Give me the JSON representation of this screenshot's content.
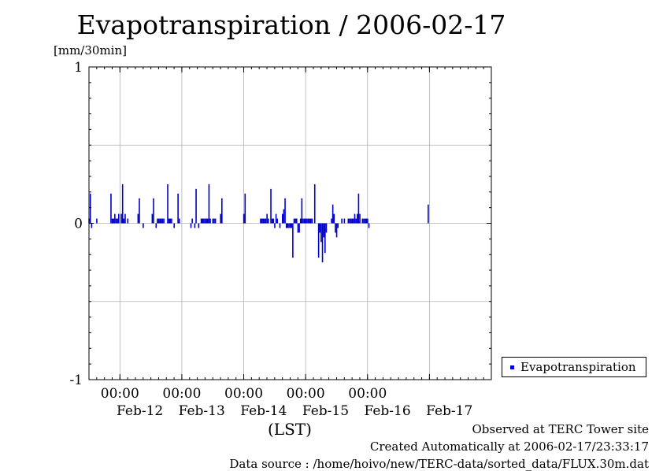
{
  "chart_data": {
    "type": "bar",
    "title": "Evapotranspiration / 2006-02-17",
    "ylabel": "[mm/30min]",
    "xlabel": "(LST)",
    "ylim": [
      -1,
      1
    ],
    "yticks": [
      "1",
      "0",
      "-1"
    ],
    "yticks_values": [
      1,
      0,
      -1
    ],
    "xlim": [
      "2006-02-11 12:00",
      "2006-02-18 00:00"
    ],
    "x_time_ticks": [
      "00:00",
      "00:00",
      "00:00",
      "00:00",
      "00:00"
    ],
    "x_day_labels": [
      "Feb-12",
      "Feb-13",
      "Feb-14",
      "Feb-15",
      "Feb-16",
      "Feb-17"
    ],
    "grid": true,
    "legend_position": "right",
    "series": [
      {
        "name": "Evapotranspiration",
        "color": "#0000cc",
        "points": [
          [
            "2006-02-11 12:00",
            0.03
          ],
          [
            "2006-02-11 12:30",
            0.19
          ],
          [
            "2006-02-11 13:00",
            -0.03
          ],
          [
            "2006-02-11 15:00",
            0.03
          ],
          [
            "2006-02-11 20:30",
            0.19
          ],
          [
            "2006-02-11 21:00",
            0.03
          ],
          [
            "2006-02-11 21:30",
            0.03
          ],
          [
            "2006-02-11 22:00",
            0.06
          ],
          [
            "2006-02-11 22:30",
            0.03
          ],
          [
            "2006-02-11 23:00",
            0.03
          ],
          [
            "2006-02-11 23:30",
            0.06
          ],
          [
            "2006-02-12 00:30",
            0.06
          ],
          [
            "2006-02-12 01:00",
            0.25
          ],
          [
            "2006-02-12 01:30",
            0.03
          ],
          [
            "2006-02-12 02:00",
            0.06
          ],
          [
            "2006-02-12 03:00",
            0.03
          ],
          [
            "2006-02-12 07:00",
            0.06
          ],
          [
            "2006-02-12 07:30",
            0.16
          ],
          [
            "2006-02-12 09:00",
            -0.03
          ],
          [
            "2006-02-12 12:30",
            0.06
          ],
          [
            "2006-02-12 13:00",
            0.16
          ],
          [
            "2006-02-12 14:00",
            -0.03
          ],
          [
            "2006-02-12 14:30",
            0.03
          ],
          [
            "2006-02-12 15:00",
            0.03
          ],
          [
            "2006-02-12 15:30",
            0.03
          ],
          [
            "2006-02-12 16:00",
            0.03
          ],
          [
            "2006-02-12 16:30",
            0.03
          ],
          [
            "2006-02-12 17:00",
            0.03
          ],
          [
            "2006-02-12 18:30",
            0.25
          ],
          [
            "2006-02-12 19:00",
            0.03
          ],
          [
            "2006-02-12 19:30",
            0.03
          ],
          [
            "2006-02-12 20:00",
            0.03
          ],
          [
            "2006-02-12 21:00",
            -0.03
          ],
          [
            "2006-02-12 22:30",
            0.19
          ],
          [
            "2006-02-12 23:00",
            0.03
          ],
          [
            "2006-02-13 03:30",
            -0.03
          ],
          [
            "2006-02-13 04:00",
            0.03
          ],
          [
            "2006-02-13 05:00",
            -0.03
          ],
          [
            "2006-02-13 05:30",
            0.22
          ],
          [
            "2006-02-13 06:30",
            -0.03
          ],
          [
            "2006-02-13 07:30",
            0.03
          ],
          [
            "2006-02-13 08:00",
            0.03
          ],
          [
            "2006-02-13 08:30",
            0.03
          ],
          [
            "2006-02-13 09:00",
            0.03
          ],
          [
            "2006-02-13 09:30",
            0.03
          ],
          [
            "2006-02-13 10:00",
            0.03
          ],
          [
            "2006-02-13 10:30",
            0.25
          ],
          [
            "2006-02-13 11:00",
            0.03
          ],
          [
            "2006-02-13 12:00",
            0.03
          ],
          [
            "2006-02-13 12:30",
            0.03
          ],
          [
            "2006-02-13 13:00",
            0.03
          ],
          [
            "2006-02-13 15:00",
            0.06
          ],
          [
            "2006-02-13 15:30",
            0.16
          ],
          [
            "2006-02-14 00:00",
            0.06
          ],
          [
            "2006-02-14 00:30",
            0.19
          ],
          [
            "2006-02-14 06:30",
            0.03
          ],
          [
            "2006-02-14 07:00",
            0.03
          ],
          [
            "2006-02-14 07:30",
            0.03
          ],
          [
            "2006-02-14 08:00",
            0.03
          ],
          [
            "2006-02-14 08:30",
            0.03
          ],
          [
            "2006-02-14 09:00",
            0.06
          ],
          [
            "2006-02-14 09:30",
            0.03
          ],
          [
            "2006-02-14 10:30",
            0.22
          ],
          [
            "2006-02-14 11:00",
            0.03
          ],
          [
            "2006-02-14 11:30",
            0.03
          ],
          [
            "2006-02-14 12:00",
            -0.03
          ],
          [
            "2006-02-14 12:30",
            0.06
          ],
          [
            "2006-02-14 13:00",
            0.03
          ],
          [
            "2006-02-14 14:00",
            -0.03
          ],
          [
            "2006-02-14 15:00",
            0.06
          ],
          [
            "2006-02-14 15:30",
            0.09
          ],
          [
            "2006-02-14 16:00",
            0.16
          ],
          [
            "2006-02-14 16:30",
            -0.03
          ],
          [
            "2006-02-14 17:00",
            -0.03
          ],
          [
            "2006-02-14 17:30",
            -0.03
          ],
          [
            "2006-02-14 18:00",
            -0.03
          ],
          [
            "2006-02-14 18:30",
            -0.03
          ],
          [
            "2006-02-14 19:00",
            -0.22
          ],
          [
            "2006-02-14 19:30",
            0.03
          ],
          [
            "2006-02-14 20:00",
            0.03
          ],
          [
            "2006-02-14 20:30",
            0.03
          ],
          [
            "2006-02-14 21:00",
            -0.06
          ],
          [
            "2006-02-14 21:30",
            -0.06
          ],
          [
            "2006-02-14 22:00",
            0.03
          ],
          [
            "2006-02-14 22:30",
            0.16
          ],
          [
            "2006-02-14 23:00",
            0.03
          ],
          [
            "2006-02-14 23:30",
            0.03
          ],
          [
            "2006-02-15 00:00",
            0.03
          ],
          [
            "2006-02-15 00:30",
            0.03
          ],
          [
            "2006-02-15 01:00",
            0.03
          ],
          [
            "2006-02-15 01:30",
            0.03
          ],
          [
            "2006-02-15 02:00",
            0.03
          ],
          [
            "2006-02-15 02:30",
            0.03
          ],
          [
            "2006-02-15 03:30",
            0.25
          ],
          [
            "2006-02-15 05:00",
            -0.22
          ],
          [
            "2006-02-15 05:30",
            -0.06
          ],
          [
            "2006-02-15 06:00",
            -0.12
          ],
          [
            "2006-02-15 06:30",
            -0.25
          ],
          [
            "2006-02-15 07:00",
            -0.09
          ],
          [
            "2006-02-15 07:30",
            -0.19
          ],
          [
            "2006-02-15 08:00",
            -0.06
          ],
          [
            "2006-02-15 10:00",
            0.03
          ],
          [
            "2006-02-15 10:30",
            0.12
          ],
          [
            "2006-02-15 11:00",
            0.06
          ],
          [
            "2006-02-15 11:30",
            -0.06
          ],
          [
            "2006-02-15 12:00",
            -0.09
          ],
          [
            "2006-02-15 12:30",
            -0.03
          ],
          [
            "2006-02-15 14:00",
            0.03
          ],
          [
            "2006-02-15 15:00",
            0.03
          ],
          [
            "2006-02-15 16:30",
            0.03
          ],
          [
            "2006-02-15 17:00",
            0.03
          ],
          [
            "2006-02-15 17:30",
            0.03
          ],
          [
            "2006-02-15 18:00",
            0.03
          ],
          [
            "2006-02-15 18:30",
            0.03
          ],
          [
            "2006-02-15 19:00",
            0.06
          ],
          [
            "2006-02-15 19:30",
            0.03
          ],
          [
            "2006-02-15 20:00",
            0.06
          ],
          [
            "2006-02-15 20:30",
            0.19
          ],
          [
            "2006-02-15 21:00",
            0.06
          ],
          [
            "2006-02-15 22:00",
            0.03
          ],
          [
            "2006-02-15 22:30",
            0.03
          ],
          [
            "2006-02-15 23:00",
            0.03
          ],
          [
            "2006-02-15 23:30",
            0.03
          ],
          [
            "2006-02-16 00:00",
            0.03
          ],
          [
            "2006-02-16 00:30",
            -0.03
          ],
          [
            "2006-02-16 23:30",
            0.12
          ]
        ]
      }
    ]
  },
  "legend": {
    "label": "Evapotranspiration"
  },
  "footer": {
    "line1": "Observed at TERC Tower site",
    "line2": "Created Automatically at 2006-02-17/23:33:17",
    "line3": "Data source : /home/hoivo/new/TERC-data/sorted_data/FLUX.30m.dat"
  }
}
